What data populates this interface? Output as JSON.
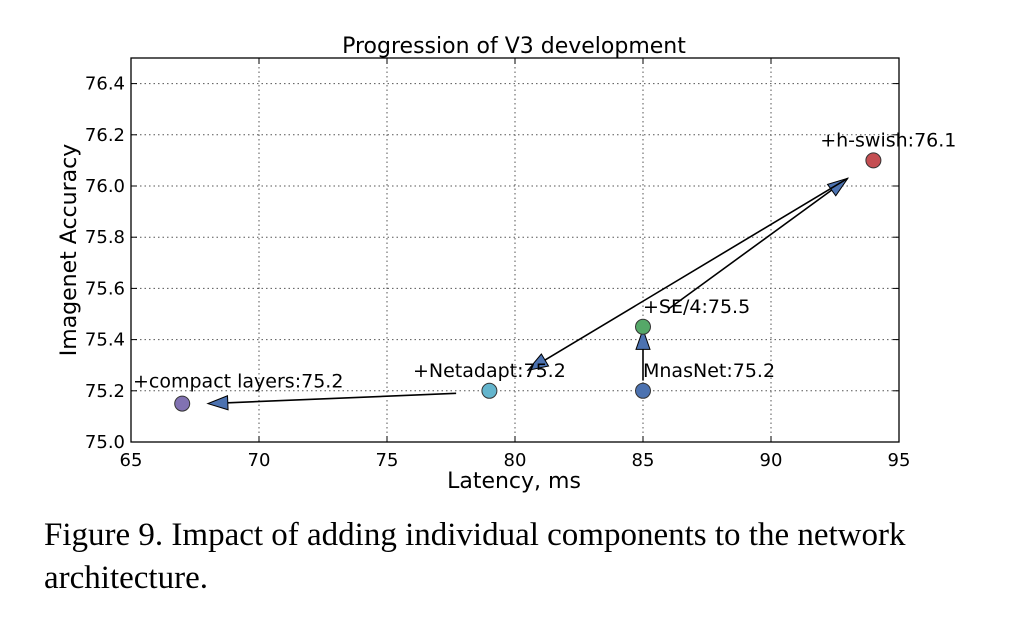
{
  "chart_data": {
    "type": "scatter",
    "title": "Progression of V3 development",
    "xlabel": "Latency, ms",
    "ylabel": "Imagenet Accuracy",
    "xlim": [
      65,
      95
    ],
    "ylim": [
      75.0,
      76.5
    ],
    "xticks": [
      65,
      70,
      75,
      80,
      85,
      90,
      95
    ],
    "yticks": [
      75.0,
      75.2,
      75.4,
      75.6,
      75.8,
      76.0,
      76.2,
      76.4
    ],
    "xtick_labels": [
      "65",
      "70",
      "75",
      "80",
      "85",
      "90",
      "95"
    ],
    "ytick_labels": [
      "75.0",
      "75.2",
      "75.4",
      "75.6",
      "75.8",
      "76.0",
      "76.2",
      "76.4"
    ],
    "grid": true,
    "points": [
      {
        "name": "mnasnet",
        "x": 85.0,
        "y": 75.2,
        "label": "MnasNet:75.2",
        "color": "#4c72b0"
      },
      {
        "name": "se4",
        "x": 85.0,
        "y": 75.45,
        "label": "+SE/4:75.5",
        "color": "#55a868"
      },
      {
        "name": "h-swish",
        "x": 94.0,
        "y": 76.1,
        "label": "+h-swish:76.1",
        "color": "#c44e52"
      },
      {
        "name": "netadapt",
        "x": 79.0,
        "y": 75.2,
        "label": "+Netadapt:75.2",
        "color": "#64b5cd"
      },
      {
        "name": "compact-layers",
        "x": 67.0,
        "y": 75.15,
        "label": "+compact layers:75.2",
        "color": "#8172b2"
      }
    ],
    "arrows": [
      {
        "name": "mnasnet-to-se",
        "from": [
          85.0,
          75.24
        ],
        "to": [
          85.0,
          75.44
        ]
      },
      {
        "name": "se-to-hswish",
        "from": [
          86.0,
          75.52
        ],
        "to": [
          93.0,
          76.03
        ]
      },
      {
        "name": "hswish-to-netadapt",
        "from": [
          93.0,
          76.03
        ],
        "to": [
          80.5,
          75.28
        ]
      },
      {
        "name": "netadapt-to-compact",
        "from": [
          77.7,
          75.19
        ],
        "to": [
          68.0,
          75.15
        ]
      }
    ]
  },
  "caption": "Figure 9. Impact of adding individual components to the network architecture."
}
